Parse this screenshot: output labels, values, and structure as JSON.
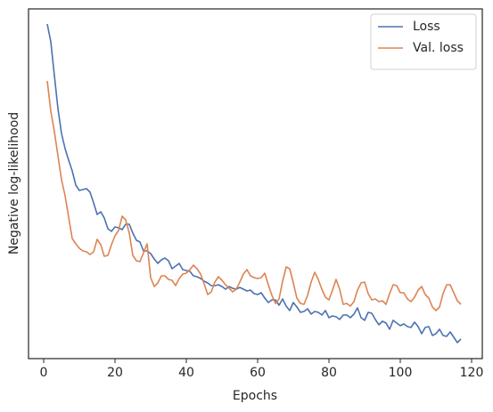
{
  "chart_data": {
    "type": "line",
    "xlabel": "Epochs",
    "ylabel": "Negative log-likelihood",
    "x": [
      1,
      2,
      3,
      4,
      5,
      6,
      7,
      8,
      9,
      10,
      11,
      12,
      13,
      14,
      15,
      16,
      17,
      18,
      19,
      20,
      21,
      22,
      23,
      24,
      25,
      26,
      27,
      28,
      29,
      30,
      31,
      32,
      33,
      34,
      35,
      36,
      37,
      38,
      39,
      40,
      41,
      42,
      43,
      44,
      45,
      46,
      47,
      48,
      49,
      50,
      51,
      52,
      53,
      54,
      55,
      56,
      57,
      58,
      59,
      60,
      61,
      62,
      63,
      64,
      65,
      66,
      67,
      68,
      69,
      70,
      71,
      72,
      73,
      74,
      75,
      76,
      77,
      78,
      79,
      80,
      81,
      82,
      83,
      84,
      85,
      86,
      87,
      88,
      89,
      90,
      91,
      92,
      93,
      94,
      95,
      96,
      97,
      98,
      99,
      100,
      101,
      102,
      103,
      104,
      105,
      106,
      107,
      108,
      109,
      110,
      111,
      112,
      113,
      114,
      115,
      116,
      117
    ],
    "series": [
      {
        "name": "Loss",
        "color": "#4c72b0",
        "values": [
          376,
          356,
          318,
          281,
          253,
          236,
          223,
          211,
          195,
          189,
          190,
          191,
          187,
          175,
          162,
          165,
          158,
          146,
          143,
          148,
          147,
          145,
          151,
          151,
          141,
          133,
          131,
          121,
          121,
          118,
          112,
          107,
          111,
          113,
          110,
          101,
          104,
          107,
          100,
          99,
          98,
          93,
          92,
          90,
          87,
          85,
          82,
          82,
          83,
          81,
          78,
          81,
          79,
          78,
          80,
          78,
          76,
          77,
          73,
          72,
          74,
          68,
          63,
          66,
          66,
          60,
          67,
          59,
          54,
          63,
          58,
          52,
          53,
          56,
          50,
          53,
          52,
          49,
          54,
          46,
          48,
          47,
          44,
          49,
          49,
          46,
          50,
          57,
          46,
          43,
          52,
          51,
          44,
          38,
          42,
          40,
          33,
          43,
          40,
          37,
          39,
          36,
          35,
          41,
          36,
          28,
          35,
          36,
          26,
          28,
          33,
          26,
          25,
          30,
          24,
          18,
          22
        ]
      },
      {
        "name": "Val. loss",
        "color": "#dd8452",
        "values": [
          312,
          278,
          255,
          228,
          201,
          183,
          159,
          135,
          129,
          124,
          121,
          120,
          117,
          120,
          134,
          128,
          115,
          116,
          128,
          138,
          144,
          160,
          156,
          141,
          116,
          110,
          109,
          119,
          129,
          91,
          81,
          85,
          93,
          93,
          89,
          88,
          82,
          90,
          95,
          96,
          100,
          105,
          101,
          95,
          84,
          72,
          75,
          86,
          92,
          88,
          83,
          79,
          75,
          78,
          86,
          95,
          100,
          93,
          91,
          90,
          91,
          96,
          83,
          71,
          62,
          67,
          87,
          103,
          101,
          85,
          68,
          62,
          61,
          71,
          86,
          97,
          89,
          78,
          69,
          66,
          77,
          89,
          78,
          61,
          62,
          59,
          64,
          77,
          85,
          86,
          73,
          66,
          67,
          64,
          65,
          61,
          73,
          83,
          82,
          74,
          74,
          67,
          64,
          69,
          77,
          81,
          72,
          68,
          58,
          54,
          58,
          73,
          83,
          83,
          74,
          65,
          61
        ]
      }
    ],
    "xlim": [
      -4.25,
      123
    ],
    "xticks": [
      0,
      20,
      40,
      60,
      80,
      100,
      120
    ],
    "ylim": [
      0,
      393
    ],
    "legend": "upper right",
    "grid": false
  }
}
